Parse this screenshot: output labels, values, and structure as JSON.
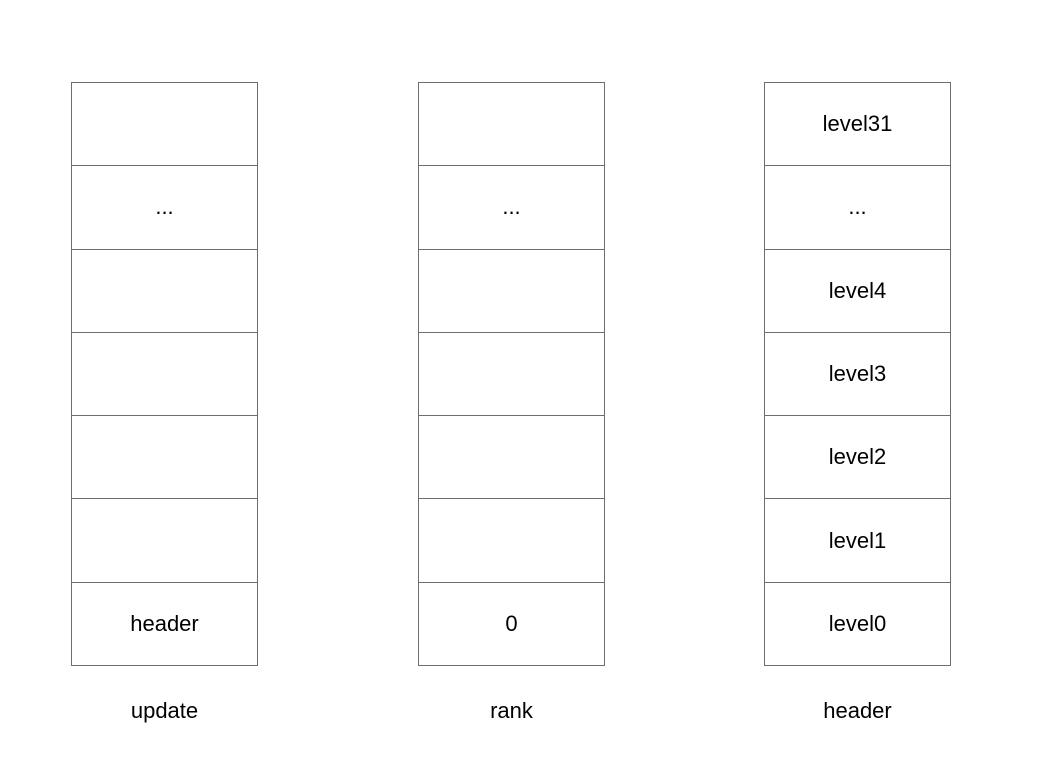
{
  "columns": [
    {
      "caption": "update",
      "cells": [
        "",
        "...",
        "",
        "",
        "",
        "",
        "header"
      ]
    },
    {
      "caption": "rank",
      "cells": [
        "",
        "...",
        "",
        "",
        "",
        "",
        "0"
      ]
    },
    {
      "caption": "header",
      "cells": [
        "level31",
        "...",
        "level4",
        "level3",
        "level2",
        "level1",
        "level0"
      ]
    }
  ]
}
